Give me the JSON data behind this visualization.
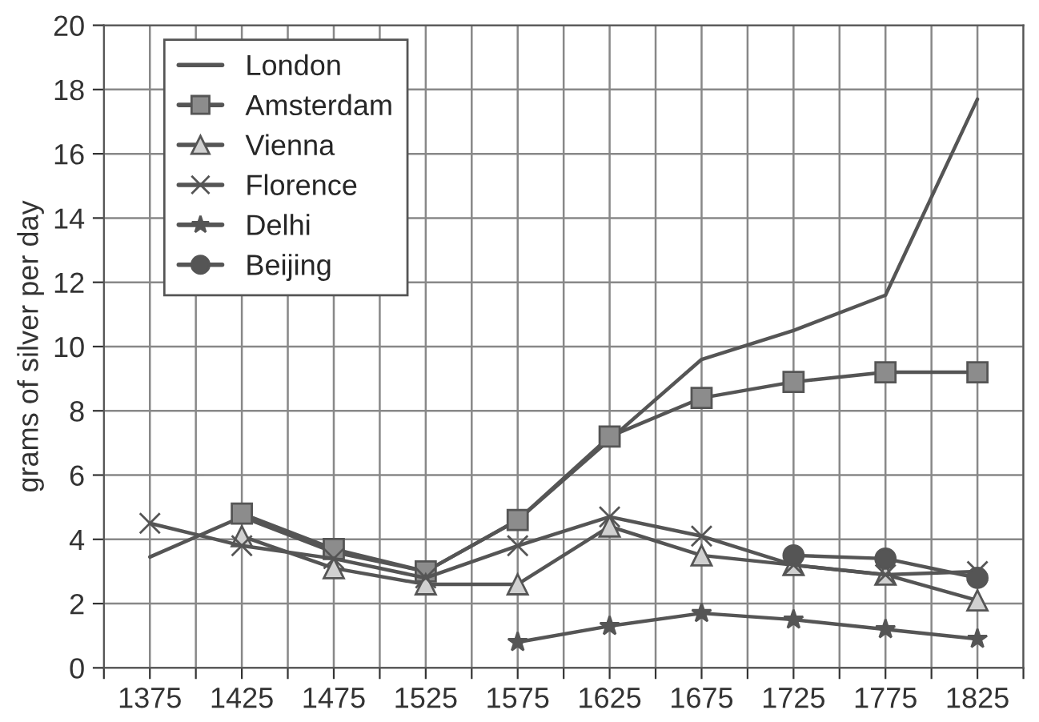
{
  "chart_data": {
    "type": "line",
    "ylabel": "grams of silver per day",
    "x": [
      1375,
      1425,
      1475,
      1525,
      1575,
      1625,
      1675,
      1725,
      1775,
      1825
    ],
    "series": [
      {
        "name": "London",
        "color": "#555555",
        "marker": "none",
        "values": [
          3.45,
          4.7,
          3.6,
          3.0,
          4.6,
          7.1,
          9.6,
          10.5,
          11.6,
          17.7
        ]
      },
      {
        "name": "Amsterdam",
        "color": "#555555",
        "marker": "square",
        "values": [
          null,
          4.8,
          3.7,
          3.0,
          4.6,
          7.2,
          8.4,
          8.9,
          9.2,
          9.2
        ]
      },
      {
        "name": "Vienna",
        "color": "#555555",
        "marker": "triangle",
        "values": [
          null,
          4.1,
          3.1,
          2.6,
          2.6,
          4.4,
          3.5,
          3.2,
          2.9,
          2.1
        ]
      },
      {
        "name": "Florence",
        "color": "#555555",
        "marker": "cross",
        "values": [
          4.5,
          3.8,
          3.4,
          2.8,
          3.8,
          4.7,
          4.1,
          3.2,
          2.9,
          3.0
        ]
      },
      {
        "name": "Delhi",
        "color": "#555555",
        "marker": "star",
        "values": [
          null,
          null,
          null,
          null,
          0.8,
          1.3,
          1.7,
          1.5,
          1.2,
          0.9
        ]
      },
      {
        "name": "Beijing",
        "color": "#555555",
        "marker": "circle",
        "values": [
          null,
          null,
          null,
          null,
          null,
          null,
          null,
          3.5,
          3.4,
          2.8
        ]
      }
    ],
    "xlim": [
      1350,
      1850
    ],
    "xticks": [
      {
        "value": 1350,
        "label": null
      },
      1375,
      {
        "value": 1400,
        "label": null
      },
      1425,
      {
        "value": 1450,
        "label": null
      },
      1475,
      {
        "value": 1500,
        "label": null
      },
      1525,
      {
        "value": 1550,
        "label": null
      },
      1575,
      {
        "value": 1600,
        "label": null
      },
      1625,
      {
        "value": 1650,
        "label": null
      },
      1675,
      {
        "value": 1700,
        "label": null
      },
      1725,
      {
        "value": 1750,
        "label": null
      },
      1775,
      {
        "value": 1800,
        "label": null
      },
      1825,
      {
        "value": 1850,
        "label": null
      }
    ],
    "ylim": [
      0,
      20
    ],
    "yticks": [
      0,
      2,
      4,
      6,
      8,
      10,
      12,
      14,
      16,
      18,
      20
    ],
    "grid": true,
    "legend": "top left",
    "line_style": "solid"
  }
}
